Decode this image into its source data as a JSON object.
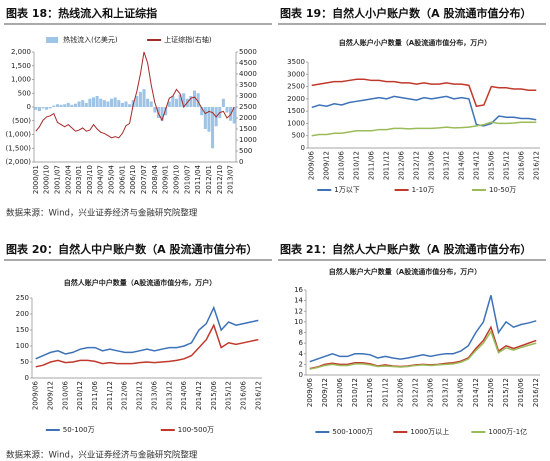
{
  "chart_data": [
    {
      "type": "combo",
      "title": "图表 18：热线流入和上证综指",
      "categories": [
        "2000/01",
        null,
        null,
        "2000/10",
        null,
        null,
        "2001/07",
        null,
        null,
        "2002/04",
        null,
        null,
        "2003/01",
        null,
        null,
        "2003/10",
        null,
        null,
        "2004/07",
        null,
        null,
        "2005/04",
        null,
        null,
        "2006/01",
        null,
        null,
        "2006/10",
        null,
        null,
        "2007/07",
        null,
        null,
        "2008/04",
        null,
        null,
        "2009/01",
        null,
        null,
        "2009/10",
        null,
        null,
        "2010/07",
        null,
        null,
        "2011/04",
        null,
        null,
        "2012/01",
        null,
        null,
        "2012/10",
        null,
        null,
        "2013/07",
        null
      ],
      "series": [
        {
          "name": "热钱流入(亿美元)",
          "type": "bar",
          "color": "#9dc3e6",
          "values": [
            -100,
            -150,
            -50,
            -100,
            -50,
            50,
            100,
            80,
            100,
            150,
            80,
            120,
            200,
            250,
            150,
            300,
            350,
            400,
            300,
            250,
            200,
            300,
            350,
            250,
            150,
            200,
            100,
            250,
            400,
            550,
            650,
            300,
            200,
            -200,
            -400,
            -500,
            -300,
            200,
            400,
            300,
            450,
            500,
            300,
            400,
            600,
            500,
            -300,
            -800,
            -900,
            -1500,
            -700,
            -400,
            300,
            -200,
            -500,
            -600
          ]
        },
        {
          "name": "上证综指(右轴)",
          "type": "line",
          "axis": "y2",
          "color": "#a52a2a",
          "values": [
            1400,
            1600,
            1900,
            2050,
            2100,
            2200,
            1800,
            1700,
            1600,
            1700,
            1550,
            1400,
            1450,
            1550,
            1400,
            1450,
            1700,
            1500,
            1350,
            1300,
            1200,
            1100,
            1150,
            1100,
            1300,
            1650,
            1750,
            2600,
            3200,
            4000,
            5000,
            4500,
            3500,
            2700,
            2200,
            1900,
            2400,
            2900,
            3000,
            3300,
            3100,
            2500,
            2700,
            2900,
            2950,
            2750,
            2450,
            2200,
            2300,
            2250,
            2050,
            2250,
            2300,
            2000,
            2150,
            2500
          ]
        }
      ],
      "ylim": [
        -2000,
        2000
      ],
      "yticks": [
        {
          "value": 2000,
          "label": "2,000"
        },
        {
          "value": 1500,
          "label": "1,500"
        },
        {
          "value": 1000,
          "label": "1,000"
        },
        500,
        0,
        {
          "value": -500,
          "label": "(500)"
        },
        {
          "value": -1000,
          "label": "(1,000)"
        },
        {
          "value": -1500,
          "label": "(1,500)"
        },
        {
          "value": -2000,
          "label": "(2,000)"
        }
      ],
      "y2lim": [
        0,
        5000
      ],
      "y2ticks": [
        0,
        500,
        1000,
        1500,
        2000,
        2500,
        3000,
        3500,
        4000,
        4500,
        5000
      ],
      "legend": "top"
    },
    {
      "type": "line",
      "title": "图表 19：自然人小户账户数（A 股流通市值分布）",
      "subtitle": "自然人账户小户数量（A股流通市值分布，万户）",
      "categories": [
        "2009/06",
        null,
        "2009/12",
        null,
        "2010/06",
        null,
        "2010/12",
        null,
        "2011/06",
        null,
        "2011/12",
        null,
        "2012/06",
        null,
        "2012/12",
        null,
        "2013/06",
        null,
        "2013/12",
        null,
        "2014/06",
        null,
        "2014/12",
        null,
        "2015/06",
        null,
        "2015/12",
        null,
        "2016/06",
        null,
        "2016/12"
      ],
      "series": [
        {
          "name": "1万以下",
          "color": "#3d72b8",
          "values": [
            1650,
            1750,
            1700,
            1800,
            1750,
            1850,
            1900,
            1950,
            2000,
            2050,
            2000,
            2100,
            2050,
            2000,
            1950,
            2050,
            2000,
            2050,
            2100,
            2000,
            2050,
            2000,
            950,
            900,
            1000,
            1300,
            1250,
            1250,
            1200,
            1200,
            1150
          ]
        },
        {
          "name": "1-10万",
          "color": "#c0392b",
          "values": [
            2550,
            2600,
            2650,
            2700,
            2700,
            2750,
            2800,
            2800,
            2750,
            2750,
            2700,
            2700,
            2650,
            2650,
            2600,
            2650,
            2600,
            2600,
            2650,
            2600,
            2600,
            2550,
            1700,
            1750,
            2500,
            2450,
            2450,
            2400,
            2400,
            2350,
            2350
          ]
        },
        {
          "name": "10-50万",
          "color": "#9bbb59",
          "values": [
            500,
            550,
            550,
            600,
            600,
            650,
            700,
            700,
            700,
            750,
            750,
            800,
            800,
            780,
            800,
            800,
            800,
            820,
            850,
            820,
            830,
            850,
            900,
            950,
            1050,
            1000,
            1000,
            1020,
            1050,
            1050,
            1050
          ]
        }
      ],
      "ylim": [
        0,
        3500
      ],
      "yticks": [
        0,
        500,
        1000,
        1500,
        2000,
        2500,
        3000,
        3500
      ],
      "legend": "bottom"
    },
    {
      "type": "line",
      "title": "图表 20：自然人中户账户数（A 股流通市值分布）",
      "subtitle": "自然人账户中户数量（A股流通市值分布，万户）",
      "categories": [
        "2009/06",
        null,
        "2009/12",
        null,
        "2010/06",
        null,
        "2010/12",
        null,
        "2011/06",
        null,
        "2011/12",
        null,
        "2012/06",
        null,
        "2012/12",
        null,
        "2013/06",
        null,
        "2013/12",
        null,
        "2014/06",
        null,
        "2014/12",
        null,
        "2015/06",
        null,
        "2015/12",
        null,
        "2016/06",
        null,
        "2016/12"
      ],
      "series": [
        {
          "name": "50-100万",
          "color": "#3d72b8",
          "values": [
            60,
            70,
            80,
            85,
            75,
            80,
            90,
            95,
            95,
            85,
            90,
            85,
            80,
            80,
            85,
            90,
            85,
            90,
            95,
            95,
            100,
            110,
            150,
            170,
            220,
            150,
            175,
            165,
            170,
            175,
            180
          ]
        },
        {
          "name": "100-500万",
          "color": "#c0392b",
          "values": [
            35,
            40,
            50,
            55,
            48,
            50,
            55,
            55,
            52,
            45,
            48,
            45,
            45,
            45,
            48,
            50,
            48,
            50,
            52,
            55,
            60,
            70,
            95,
            120,
            165,
            95,
            110,
            105,
            110,
            115,
            120
          ]
        }
      ],
      "ylim": [
        0,
        250
      ],
      "yticks": [
        0,
        50,
        100,
        150,
        200,
        250
      ],
      "legend": "bottom"
    },
    {
      "type": "line",
      "title": "图表 21：自然人大户账户数（A 股流通市值分布）",
      "subtitle": "自然人账户大户数量（A股流通市值分布，万户）",
      "categories": [
        "2009/06",
        null,
        "2009/12",
        null,
        "2010/06",
        null,
        "2010/12",
        null,
        "2011/06",
        null,
        "2011/12",
        null,
        "2012/06",
        null,
        "2012/12",
        null,
        "2013/06",
        null,
        "2013/12",
        null,
        "2014/06",
        null,
        "2014/12",
        null,
        "2015/06",
        null,
        "2015/12",
        null,
        "2016/06",
        null,
        "2016/12"
      ],
      "series": [
        {
          "name": "500-1000万",
          "color": "#3d72b8",
          "values": [
            2.5,
            3,
            3.5,
            4,
            3.5,
            3.5,
            4,
            4,
            3.8,
            3.2,
            3.5,
            3.2,
            3,
            3.2,
            3.5,
            3.8,
            3.5,
            3.8,
            4,
            4,
            4.5,
            5.5,
            8,
            10,
            15,
            8,
            10,
            9,
            9.5,
            9.8,
            10.2
          ]
        },
        {
          "name": "1000万以上",
          "color": "#c0392b",
          "values": [
            1.2,
            1.5,
            2,
            2.2,
            2,
            2,
            2.3,
            2.3,
            2.1,
            1.7,
            1.9,
            1.7,
            1.6,
            1.7,
            1.9,
            2,
            1.9,
            2,
            2.2,
            2.3,
            2.6,
            3.2,
            5,
            6.5,
            9,
            4.5,
            5.5,
            5,
            5.5,
            6,
            6.5
          ]
        },
        {
          "name": "1000万-1亿",
          "color": "#9bbb59",
          "values": [
            1.1,
            1.4,
            1.8,
            2,
            1.8,
            1.8,
            2.1,
            2.1,
            1.9,
            1.6,
            1.7,
            1.6,
            1.5,
            1.6,
            1.8,
            1.9,
            1.8,
            1.9,
            2,
            2.1,
            2.4,
            3,
            4.6,
            6,
            8.2,
            4.2,
            5.1,
            4.7,
            5.2,
            5.6,
            6
          ]
        }
      ],
      "ylim": [
        0,
        16
      ],
      "yticks": [
        0,
        2,
        4,
        6,
        8,
        10,
        12,
        14,
        16
      ],
      "legend": "bottom"
    }
  ],
  "notes": [
    "数据来源：Wind，兴业证券经济与金融研究院整理",
    "数据来源：Wind，兴业证券经济与金融研究院整理"
  ]
}
